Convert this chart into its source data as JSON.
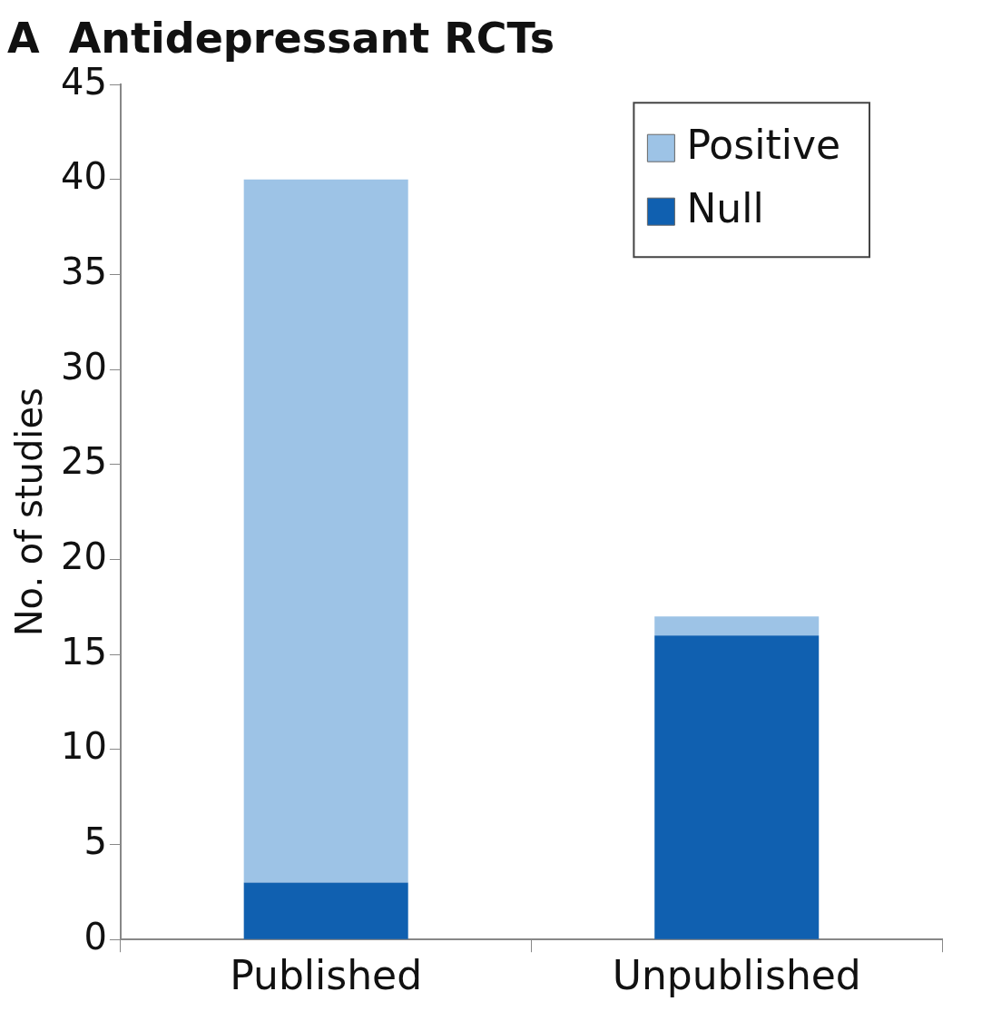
{
  "chart_data": {
    "type": "bar",
    "title": "A  Antidepressant RCTs",
    "ylabel": "No. of studies",
    "categories": [
      "Published",
      "Unpublished"
    ],
    "stacked": true,
    "series": [
      {
        "name": "Null",
        "color": "#1060b0",
        "values": [
          3,
          16
        ]
      },
      {
        "name": "Positive",
        "color": "#9dc3e6",
        "values": [
          37,
          1
        ]
      }
    ],
    "ylim": [
      0,
      45
    ],
    "yticks": [
      0,
      5,
      10,
      15,
      20,
      25,
      30,
      35,
      40,
      45
    ],
    "grid": false,
    "legend": "top right"
  }
}
